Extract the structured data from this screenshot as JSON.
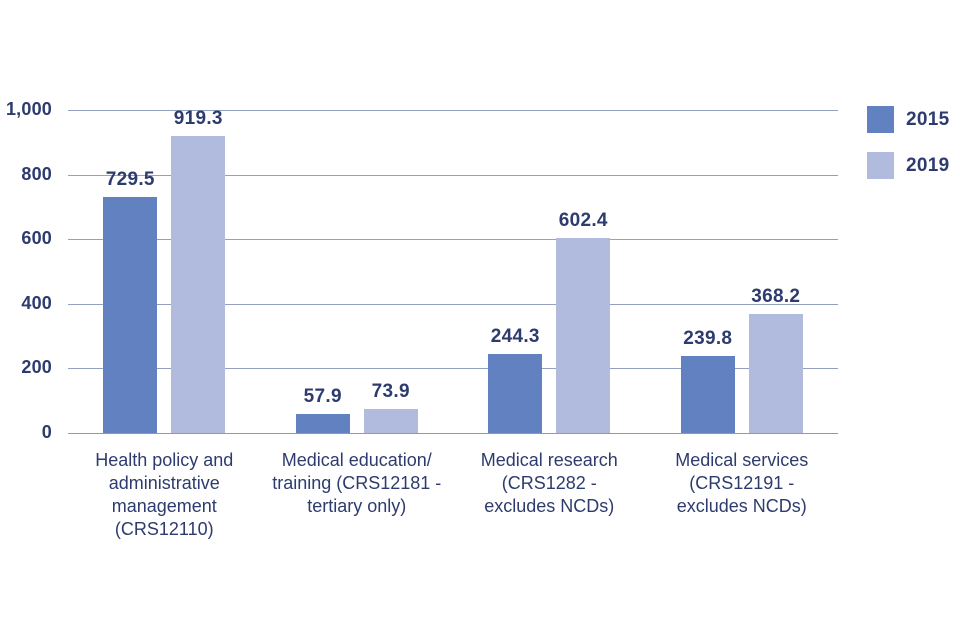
{
  "chart_data": {
    "type": "bar",
    "title": "",
    "xlabel": "",
    "ylabel": "",
    "categories": [
      "Health policy and\nadministrative\nmanagement\n(CRS12110)",
      "Medical education/\ntraining (CRS12181 -\ntertiary only)",
      "Medical research\n(CRS1282 -\nexcludes NCDs)",
      "Medical services\n(CRS12191 -\nexcludes NCDs)"
    ],
    "series": [
      {
        "name": "2015",
        "color": "#6181c0",
        "values": [
          729.5,
          57.9,
          244.3,
          239.8
        ]
      },
      {
        "name": "2019",
        "color": "#b1bbdd",
        "values": [
          919.3,
          73.9,
          602.4,
          368.2
        ]
      }
    ],
    "value_labels": [
      [
        "729.5",
        "57.9",
        "244.3",
        "239.8"
      ],
      [
        "919.3",
        "73.9",
        "602.4",
        "368.2"
      ]
    ],
    "ylim": [
      0,
      1000
    ],
    "yticks": [
      0,
      200,
      400,
      600,
      800,
      1000
    ],
    "ytick_labels": [
      "0",
      "200",
      "400",
      "600",
      "800",
      "1,000"
    ],
    "grid": "horizontal",
    "legend_position": "top-right"
  },
  "colors": {
    "series_2015": "#6181c0",
    "series_2019": "#b1bbdd",
    "text": "#2d3b6e",
    "gridline": "#94a0c0",
    "background": "#ffffff"
  }
}
